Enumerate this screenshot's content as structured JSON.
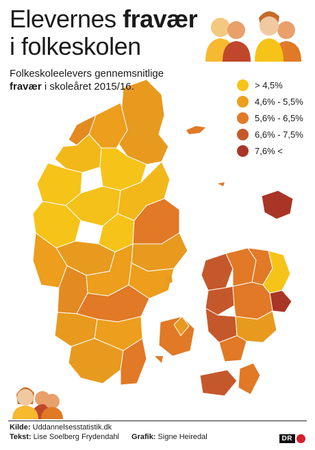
{
  "header": {
    "title_part1": "Elevernes ",
    "title_bold": "fravær",
    "title_line2": "i folkeskolen"
  },
  "subtitle": {
    "line1": "Folkeskoleelevers gennemsnitlige",
    "bold": "fravær",
    "rest": " i skoleåret 2015/16."
  },
  "legend": [
    {
      "label": "> 4,5%",
      "color": "#f6c318"
    },
    {
      "label": "4,6% - 5,5%",
      "color": "#ec9e1c"
    },
    {
      "label": "5,6% - 6,5%",
      "color": "#e17926"
    },
    {
      "label": "6,6% - 7,5%",
      "color": "#c5582a"
    },
    {
      "label": "7,6% <",
      "color": "#a93526"
    }
  ],
  "credits": {
    "source_label": "Kilde:",
    "source_value": " Uddannelsesstatistik.dk",
    "text_label": "Tekst:",
    "text_value": " Lise Soelberg Frydendahl",
    "graphic_label": "Grafik:",
    "graphic_value": " Signe Heiredal"
  },
  "logo": {
    "text": "DR"
  }
}
